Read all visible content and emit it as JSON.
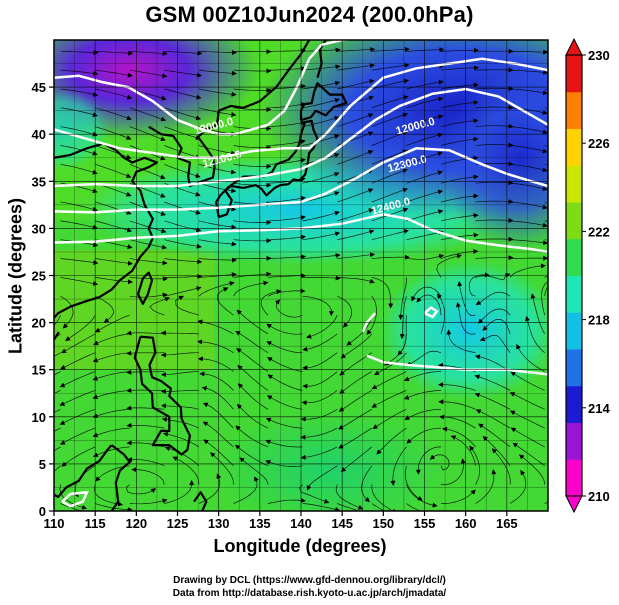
{
  "figure": {
    "title": "GSM 00Z10Jun2024 (200.0hPa)",
    "xlabel": "Longitude (degrees)",
    "ylabel": "Latitude  (degrees)",
    "credits": [
      "Drawing by DCL (https://www.gfd-dennou.org/library/dcl/)",
      "Data from http://database.rish.kyoto-u.ac.jp/arch/jmadata/"
    ]
  },
  "map": {
    "lon_range": [
      110,
      170
    ],
    "lat_range": [
      0,
      50
    ],
    "lon_ticks": [
      110,
      115,
      120,
      125,
      130,
      135,
      140,
      145,
      150,
      155,
      160,
      165
    ],
    "lat_ticks": [
      0,
      5,
      10,
      15,
      20,
      25,
      30,
      35,
      40,
      45
    ],
    "contour_labels": [
      {
        "text": "12000.0",
        "lon": 129.5,
        "lat": 40.5
      },
      {
        "text": "12100.0",
        "lon": 130.5,
        "lat": 37.0
      },
      {
        "text": "12000.0",
        "lon": 154.0,
        "lat": 40.5
      },
      {
        "text": "12300.0",
        "lon": 153.0,
        "lat": 36.5
      },
      {
        "text": "12400.0",
        "lon": 151.0,
        "lat": 32.0
      }
    ]
  },
  "colorbar": {
    "min": 210,
    "max": 230,
    "tick_labels": [
      "230",
      "226",
      "222",
      "218",
      "214",
      "210"
    ],
    "colors": [
      "#ff00cc",
      "#9b14d6",
      "#1b1bd2",
      "#1e72e6",
      "#14bfe6",
      "#1ee6b4",
      "#2fdc50",
      "#7fdc14",
      "#cde600",
      "#ffd200",
      "#ff7f00",
      "#e61414"
    ]
  },
  "colors": {
    "land": "#000000",
    "contour": "#ffffff",
    "streamline": "#000000"
  }
}
